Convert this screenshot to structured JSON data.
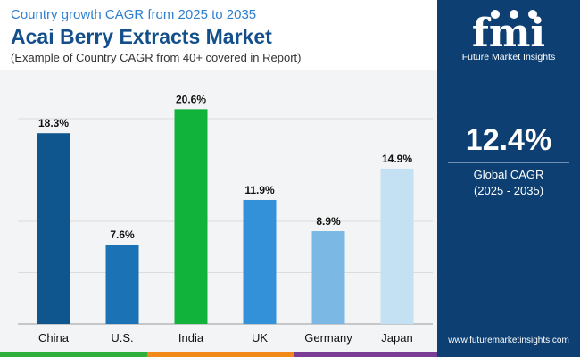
{
  "header": {
    "subtitle": "Country growth CAGR from 2025 to 2035",
    "title": "Acai Berry Extracts Market",
    "note": "(Example of Country CAGR from 40+ covered in Report)"
  },
  "side": {
    "logo_text": "fmi",
    "brand": "Future Market Insights",
    "cagr_value": "12.4%",
    "cagr_label": "Global CAGR",
    "cagr_period": "(2025 - 2035)",
    "website": "www.futuremarketinsights.com"
  },
  "colors": {
    "panel": "#0d3f72",
    "title": "#134f8a",
    "subtitle": "#2f7fd0"
  },
  "chart_data": {
    "type": "bar",
    "title": "Acai Berry Extracts Market",
    "categories": [
      "China",
      "U.S.",
      "India",
      "UK",
      "Germany",
      "Japan"
    ],
    "values": [
      18.3,
      7.6,
      20.6,
      11.9,
      8.9,
      14.9
    ],
    "labels": [
      "18.3%",
      "7.6%",
      "20.6%",
      "11.9%",
      "8.9%",
      "14.9%"
    ],
    "colors": [
      "#0f568e",
      "#1b72b5",
      "#11b33a",
      "#3291d9",
      "#7bb8e3",
      "#c4e0f3"
    ],
    "ylim": [
      0,
      22
    ],
    "grid": true,
    "xlabel": "",
    "ylabel": ""
  }
}
